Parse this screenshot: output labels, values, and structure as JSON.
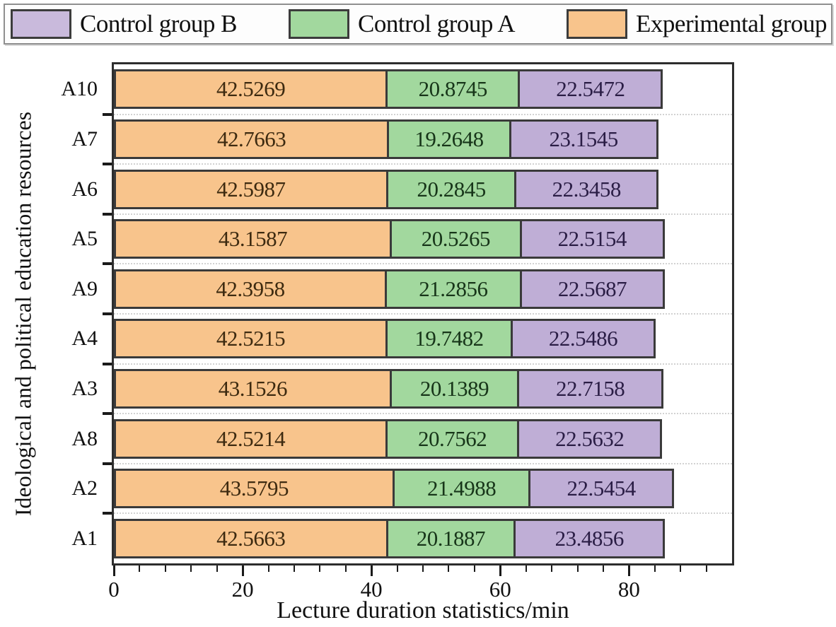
{
  "legend": {
    "items": [
      {
        "label": "Control group B",
        "color": "#c9badc"
      },
      {
        "label": "Control group A",
        "color": "#a2d89e"
      },
      {
        "label": "Experimental group",
        "color": "#f8c48c"
      }
    ]
  },
  "chart_data": {
    "type": "bar",
    "orientation": "horizontal",
    "stacked": true,
    "title": "",
    "xlabel": "Lecture duration statistics/min",
    "ylabel": "Ideological and political education resources",
    "categories": [
      "A10",
      "A7",
      "A6",
      "A5",
      "A9",
      "A4",
      "A3",
      "A8",
      "A2",
      "A1"
    ],
    "series": [
      {
        "name": "Experimental group",
        "color": "#f8c48c",
        "text_color": "#3d2a10",
        "values": [
          42.5269,
          42.7663,
          42.5987,
          43.1587,
          42.3958,
          42.5215,
          43.1526,
          42.5214,
          43.5795,
          42.5663
        ]
      },
      {
        "name": "Control group A",
        "color": "#a2d89e",
        "text_color": "#173519",
        "values": [
          20.8745,
          19.2648,
          20.2845,
          20.5265,
          21.2856,
          19.7482,
          20.1389,
          20.7562,
          21.4988,
          20.1887
        ]
      },
      {
        "name": "Control group B",
        "color": "#bfaed6",
        "text_color": "#2a1d45",
        "values": [
          22.5472,
          23.1545,
          22.3458,
          22.5154,
          22.5687,
          22.5486,
          22.7158,
          22.5632,
          22.5454,
          23.4856
        ]
      }
    ],
    "value_decimals": 4,
    "xlim": [
      0,
      96
    ],
    "x_ticks": [
      0,
      20,
      40,
      60,
      80
    ],
    "x_minor_step": 4,
    "grid": "horizontal dotted",
    "legend_position": "top"
  }
}
